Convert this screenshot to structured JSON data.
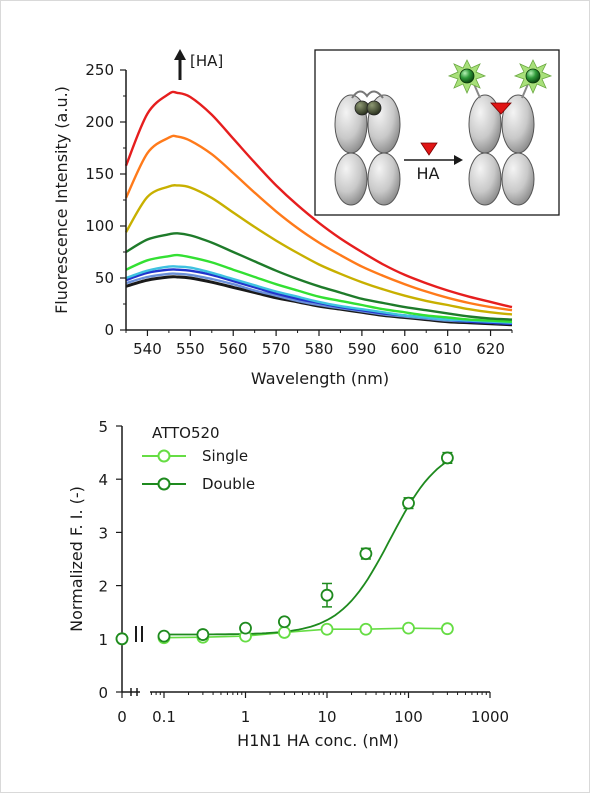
{
  "chart_data": [
    {
      "type": "line",
      "xlabel": "Wavelength (nm)",
      "ylabel": "Fluorescence Intensity (a.u.)",
      "xlim": [
        535,
        625
      ],
      "ylim": [
        0,
        250
      ],
      "xticks": [
        540,
        550,
        560,
        570,
        580,
        590,
        600,
        610,
        620
      ],
      "yticks": [
        0,
        50,
        100,
        150,
        200,
        250
      ],
      "annotation": "[HA]",
      "inset_label": "HA",
      "x": [
        535,
        540,
        545,
        547,
        550,
        555,
        560,
        565,
        570,
        575,
        580,
        585,
        590,
        595,
        600,
        605,
        610,
        615,
        620,
        625
      ],
      "series": [
        {
          "color": "#1a1a1a",
          "values": [
            42,
            48,
            51,
            51,
            50,
            46,
            41,
            36,
            31,
            27,
            23,
            20,
            17,
            14,
            12,
            10,
            8,
            7,
            6,
            5
          ]
        },
        {
          "color": "#6a8fd8",
          "values": [
            45,
            51,
            54,
            54,
            53,
            49,
            44,
            38,
            33,
            28,
            24,
            21,
            18,
            15,
            13,
            11,
            9,
            8,
            7,
            6
          ]
        },
        {
          "color": "#2233cc",
          "values": [
            48,
            55,
            58,
            58,
            57,
            53,
            47,
            41,
            35,
            30,
            26,
            22,
            19,
            16,
            14,
            12,
            10,
            8,
            7,
            6
          ]
        },
        {
          "color": "#3fc2e0",
          "values": [
            50,
            57,
            61,
            61,
            60,
            55,
            49,
            43,
            37,
            32,
            27,
            23,
            20,
            17,
            14,
            12,
            10,
            9,
            8,
            7
          ]
        },
        {
          "color": "#33e033",
          "values": [
            58,
            67,
            71,
            72,
            70,
            65,
            58,
            51,
            44,
            38,
            32,
            28,
            24,
            20,
            17,
            14,
            12,
            10,
            9,
            8
          ]
        },
        {
          "color": "#1e7b2a",
          "values": [
            75,
            87,
            92,
            93,
            91,
            84,
            75,
            66,
            57,
            49,
            42,
            36,
            30,
            26,
            22,
            19,
            16,
            13,
            11,
            10
          ]
        },
        {
          "color": "#c8b000",
          "values": [
            94,
            128,
            138,
            139,
            137,
            127,
            113,
            99,
            86,
            74,
            63,
            54,
            46,
            39,
            33,
            28,
            24,
            20,
            17,
            15
          ]
        },
        {
          "color": "#ff7a1a",
          "values": [
            127,
            170,
            185,
            186,
            182,
            169,
            151,
            132,
            114,
            98,
            84,
            72,
            61,
            52,
            44,
            37,
            31,
            26,
            22,
            19
          ]
        },
        {
          "color": "#e61e1e",
          "values": [
            158,
            208,
            227,
            228,
            224,
            207,
            184,
            161,
            139,
            120,
            103,
            88,
            75,
            63,
            53,
            45,
            38,
            32,
            27,
            22
          ]
        }
      ]
    },
    {
      "type": "scatter",
      "xlabel": "H1N1 HA conc. (nM)",
      "ylabel": "Normalized F. I. (-)",
      "xscale": "log",
      "xlim": [
        0.01,
        1000
      ],
      "ylim": [
        0,
        5
      ],
      "xtick_labels": [
        "0",
        "0.1",
        "1",
        "10",
        "100",
        "1000"
      ],
      "yticks": [
        0,
        1,
        2,
        3,
        4,
        5
      ],
      "legend_title": "ATTO520",
      "legend_position": "top-left",
      "series": [
        {
          "name": "Single",
          "color": "#66dd44",
          "zero_point": 1.0,
          "x": [
            0.1,
            0.3,
            1,
            3,
            10,
            30,
            100,
            300
          ],
          "y": [
            1.02,
            1.03,
            1.05,
            1.12,
            1.18,
            1.18,
            1.2,
            1.19
          ],
          "err": [
            0,
            0,
            0,
            0,
            0,
            0,
            0,
            0
          ]
        },
        {
          "name": "Double",
          "color": "#1e8a1e",
          "zero_point": 1.0,
          "x": [
            0.1,
            0.3,
            1,
            3,
            10,
            30,
            100,
            300
          ],
          "y": [
            1.05,
            1.08,
            1.2,
            1.32,
            1.82,
            2.6,
            3.55,
            4.4
          ],
          "err": [
            0.03,
            0.04,
            0.06,
            0.06,
            0.22,
            0.1,
            0.1,
            0.1
          ]
        }
      ]
    }
  ]
}
